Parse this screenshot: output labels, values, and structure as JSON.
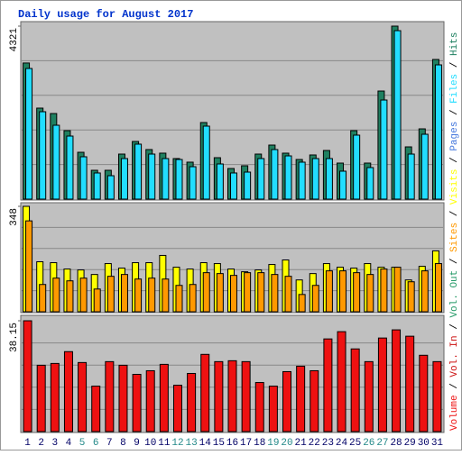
{
  "chart_data": [
    {
      "type": "bar",
      "title": "Daily usage for August 2017",
      "ylim": [
        0,
        4321
      ],
      "yticks": [
        4321
      ],
      "series": [
        {
          "name": "Pages",
          "color": "#4477dd",
          "values": [
            null,
            null,
            null,
            null,
            null,
            null,
            null,
            null,
            null,
            null,
            null,
            null,
            null,
            null,
            null,
            null,
            null,
            null,
            null,
            null,
            null,
            null,
            null,
            null,
            null,
            null,
            null,
            null,
            null,
            null,
            null
          ]
        },
        {
          "name": "Files",
          "color": "#22ddff",
          "values": [
            3263,
            2183,
            1845,
            1575,
            1058,
            653,
            585,
            1013,
            1373,
            1125,
            1013,
            990,
            810,
            1823,
            878,
            653,
            675,
            1013,
            1238,
            1080,
            923,
            1013,
            1013,
            698,
            1598,
            788,
            2475,
            4208,
            1125,
            1620,
            3353
          ]
        },
        {
          "name": "Hits",
          "color": "#1f8060",
          "values": [
            3400,
            2273,
            2138,
            1710,
            1170,
            720,
            720,
            1125,
            1440,
            1238,
            1148,
            1013,
            923,
            1913,
            1035,
            765,
            833,
            1125,
            1350,
            1148,
            990,
            1103,
            1215,
            900,
            1710,
            900,
            2700,
            4321,
            1305,
            1755,
            3488
          ]
        }
      ]
    },
    {
      "type": "bar",
      "ylim": [
        0,
        348
      ],
      "yticks": [
        348
      ],
      "series": [
        {
          "name": "Sites",
          "color": "#ff9900",
          "values": [
            300,
            90,
            111,
            102,
            111,
            75,
            117,
            123,
            108,
            111,
            108,
            87,
            90,
            129,
            126,
            120,
            129,
            129,
            123,
            117,
            57,
            87,
            135,
            135,
            129,
            123,
            141,
            147,
            99,
            135,
            159
          ]
        },
        {
          "name": "Visits",
          "color": "#ffff00",
          "values": [
            348,
            165,
            162,
            141,
            138,
            123,
            159,
            144,
            162,
            162,
            186,
            147,
            141,
            162,
            159,
            141,
            132,
            138,
            156,
            171,
            105,
            126,
            159,
            147,
            144,
            159,
            147,
            147,
            105,
            150,
            201
          ]
        }
      ]
    },
    {
      "type": "bar",
      "ylim": [
        0,
        38.15
      ],
      "yticks": [
        38.15
      ],
      "categories": [
        "1",
        "2",
        "3",
        "4",
        "5",
        "6",
        "7",
        "8",
        "9",
        "10",
        "11",
        "12",
        "13",
        "14",
        "15",
        "16",
        "17",
        "18",
        "19",
        "20",
        "21",
        "22",
        "23",
        "24",
        "25",
        "26",
        "27",
        "28",
        "29",
        "30",
        "31"
      ],
      "category_colors": [
        "#000066",
        "#000066",
        "#000066",
        "#000066",
        "#228888",
        "#228888",
        "#000066",
        "#000066",
        "#000066",
        "#000066",
        "#000066",
        "#228888",
        "#228888",
        "#000066",
        "#000066",
        "#000066",
        "#000066",
        "#000066",
        "#228888",
        "#228888",
        "#000066",
        "#000066",
        "#000066",
        "#000066",
        "#000066",
        "#228888",
        "#228888",
        "#000066",
        "#000066",
        "#000066",
        "#000066"
      ],
      "legend_separator": " / ",
      "series": [
        {
          "name": "Volume",
          "color": "#ee1111",
          "values": [
            38.15,
            22.83,
            23.45,
            27.52,
            23.77,
            15.64,
            24.08,
            22.83,
            19.7,
            20.95,
            23.14,
            15.95,
            20.01,
            26.58,
            24.08,
            24.39,
            24.08,
            16.89,
            15.64,
            20.64,
            22.51,
            20.95,
            31.9,
            34.4,
            28.46,
            24.08,
            32.21,
            35.02,
            32.83,
            26.27,
            24.08
          ]
        },
        {
          "name": "Vol. In",
          "color": "#cc1111",
          "values": [
            null,
            null,
            null,
            null,
            null,
            null,
            null,
            null,
            null,
            null,
            null,
            null,
            null,
            null,
            null,
            null,
            null,
            null,
            null,
            null,
            null,
            null,
            null,
            null,
            null,
            null,
            null,
            null,
            null,
            null,
            null
          ]
        },
        {
          "name": "Vol. Out",
          "color": "#229966",
          "values": [
            null,
            null,
            null,
            null,
            null,
            null,
            null,
            null,
            null,
            null,
            null,
            null,
            null,
            null,
            null,
            null,
            null,
            null,
            null,
            null,
            null,
            null,
            null,
            null,
            null,
            null,
            null,
            null,
            null,
            null,
            null
          ]
        }
      ]
    }
  ]
}
